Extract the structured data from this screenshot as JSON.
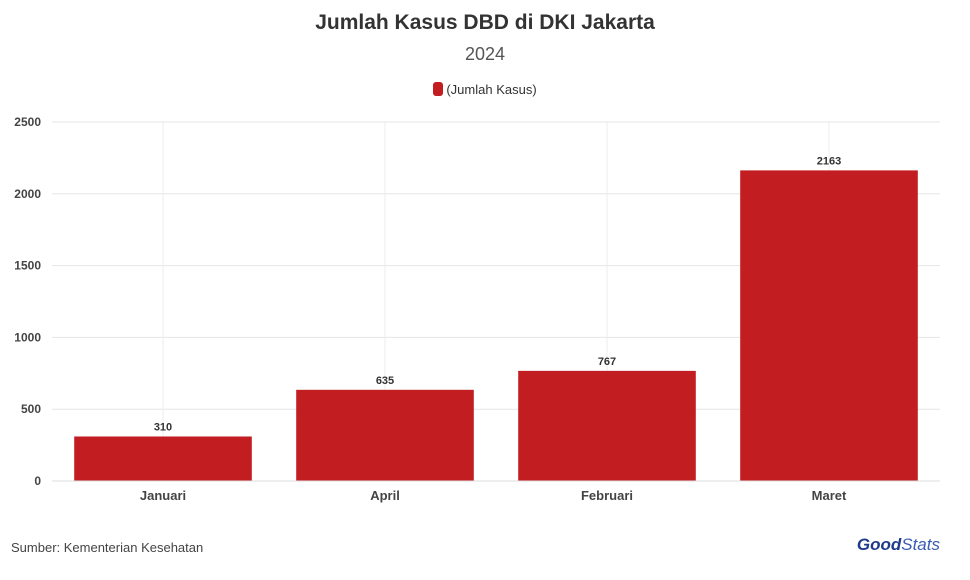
{
  "chart_data": {
    "type": "bar",
    "title": "Jumlah Kasus DBD di DKI Jakarta",
    "subtitle": "2024",
    "categories": [
      "Januari",
      "April",
      "Februari",
      "Maret"
    ],
    "series": [
      {
        "name": "(Jumlah Kasus)",
        "values": [
          310,
          635,
          767,
          2163
        ],
        "color": "#c21e22"
      }
    ],
    "data_labels": [
      "310",
      "635",
      "767",
      "2163"
    ],
    "ylim": [
      0,
      2500
    ],
    "yticks": [
      0,
      500,
      1000,
      1500,
      2000,
      2500
    ],
    "xlabel": "",
    "ylabel": "",
    "grid": true,
    "legend_position": "top-center"
  },
  "footer": {
    "source": "Sumber: Kementerian Kesehatan",
    "brand_part1": "Good",
    "brand_part2": "Stats"
  }
}
